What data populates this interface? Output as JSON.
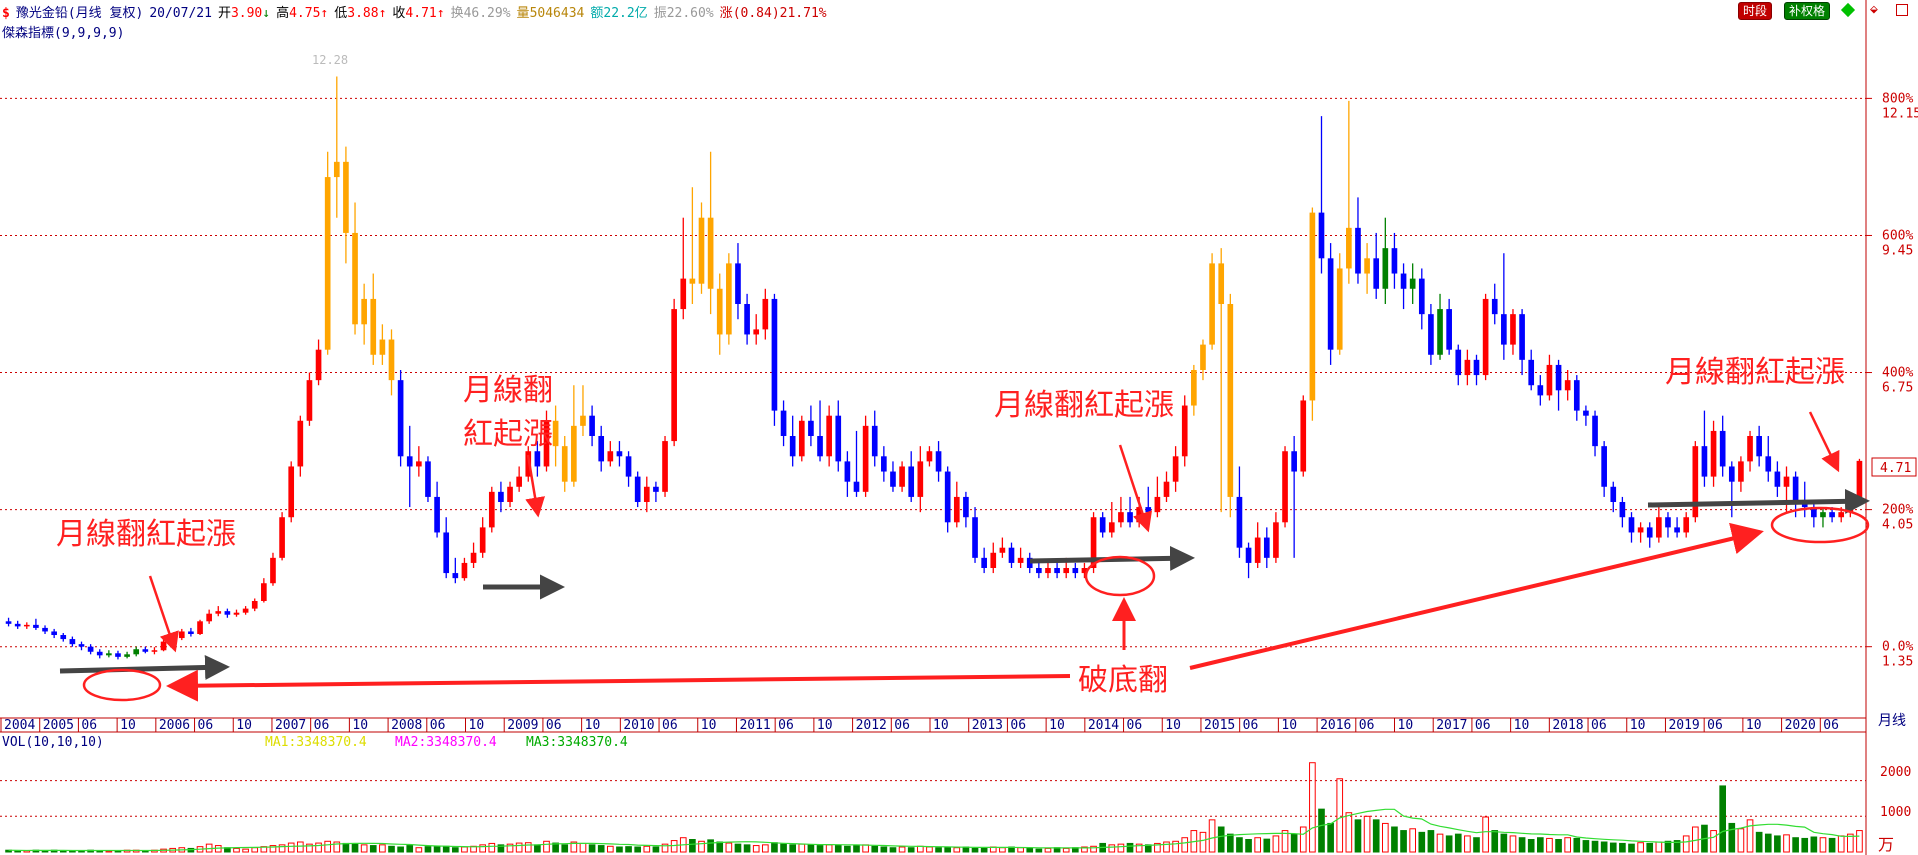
{
  "header": {
    "stock_name": "豫光金铅(月线 复权)",
    "date": "20/07/21",
    "open_label": "开",
    "open": "3.90",
    "high_label": "高",
    "high": "4.75",
    "low_label": "低",
    "low": "3.88",
    "close_label": "收",
    "close": "4.71",
    "turnover_label": "换",
    "turnover": "46.29%",
    "volume_label": "量",
    "volume": "5046434",
    "amount_label": "额",
    "amount": "22.2亿",
    "amplitude_label": "振",
    "amplitude": "22.60%",
    "change_label": "涨",
    "change": "(0.84)21.71%",
    "indicator": "傑森指標(9,9,9,9)",
    "btn_time": "时段",
    "btn_fill": "补权格"
  },
  "volume_panel": {
    "title": "VOL(10,10,10)",
    "ma1": "MA1:3348370.4",
    "ma2": "MA2:3348370.4",
    "ma3": "MA3:3348370.4",
    "axis_labels": [
      "2000",
      "1000"
    ],
    "unit": "万"
  },
  "colors": {
    "up_red": "#ff0000",
    "down_blue": "#0000ff",
    "orange": "#ffa500",
    "green": "#008000",
    "grid": "#cc0000",
    "annotation": "#ff2020",
    "arrow_grey": "#444444"
  },
  "annotations": {
    "label1": "月線翻紅起漲",
    "label2a": "月線翻",
    "label2b": "紅起漲",
    "label3": "月線翻紅起漲",
    "label4": "月線翻紅起漲",
    "label5": "破底翻",
    "top_price": "12.28"
  },
  "chart_data": {
    "type": "candlestick",
    "title": "豫光金铅(月线 复权)",
    "x_tick_labels": [
      "2004",
      "2005",
      "06",
      "10",
      "2006",
      "06",
      "10",
      "2007",
      "06",
      "10",
      "2008",
      "06",
      "10",
      "2009",
      "06",
      "10",
      "2010",
      "06",
      "10",
      "2011",
      "06",
      "10",
      "2012",
      "06",
      "10",
      "2013",
      "06",
      "10",
      "2014",
      "06",
      "10",
      "2015",
      "06",
      "10",
      "2016",
      "06",
      "10",
      "2017",
      "06",
      "10",
      "2018",
      "06",
      "10",
      "2019",
      "06",
      "10",
      "2020",
      "06"
    ],
    "x_axis_unit": "月线",
    "y_axis_percent_labels": [
      "800%",
      "600%",
      "400%",
      "200%",
      "0.0%"
    ],
    "y_axis_price_labels": [
      "12.15",
      "9.45",
      "6.75",
      "4.05",
      "1.35"
    ],
    "current_price_tag": "4.71",
    "ylim": [
      0.0,
      13.0
    ],
    "candles": [
      [
        1.55,
        1.5,
        1.62,
        1.45
      ],
      [
        1.5,
        1.45,
        1.56,
        1.4
      ],
      [
        1.45,
        1.48,
        1.53,
        1.4
      ],
      [
        1.48,
        1.42,
        1.6,
        1.38
      ],
      [
        1.42,
        1.35,
        1.47,
        1.3
      ],
      [
        1.35,
        1.28,
        1.4,
        1.22
      ],
      [
        1.28,
        1.2,
        1.32,
        1.15
      ],
      [
        1.2,
        1.1,
        1.25,
        1.05
      ],
      [
        1.1,
        1.05,
        1.15,
        0.98
      ],
      [
        1.05,
        0.95,
        1.1,
        0.9
      ],
      [
        0.95,
        0.88,
        1.0,
        0.82
      ],
      [
        0.88,
        0.92,
        0.98,
        0.84
      ],
      [
        0.92,
        0.85,
        0.97,
        0.8
      ],
      [
        0.85,
        0.9,
        0.95,
        0.82
      ],
      [
        0.9,
        1.0,
        1.05,
        0.86
      ],
      [
        1.0,
        0.95,
        1.05,
        0.92
      ],
      [
        0.95,
        0.98,
        1.04,
        0.9
      ],
      [
        0.98,
        1.15,
        1.2,
        0.96
      ],
      [
        1.15,
        1.22,
        1.3,
        1.1
      ],
      [
        1.22,
        1.35,
        1.4,
        1.18
      ],
      [
        1.35,
        1.3,
        1.42,
        1.25
      ],
      [
        1.3,
        1.55,
        1.58,
        1.28
      ],
      [
        1.55,
        1.7,
        1.78,
        1.5
      ],
      [
        1.7,
        1.75,
        1.85,
        1.65
      ],
      [
        1.75,
        1.68,
        1.8,
        1.62
      ],
      [
        1.68,
        1.72,
        1.78,
        1.64
      ],
      [
        1.72,
        1.8,
        1.85,
        1.68
      ],
      [
        1.8,
        1.95,
        2.0,
        1.75
      ],
      [
        1.95,
        2.3,
        2.4,
        1.92
      ],
      [
        2.3,
        2.8,
        2.9,
        2.25
      ],
      [
        2.8,
        3.6,
        3.7,
        2.75
      ],
      [
        3.6,
        4.6,
        4.7,
        3.5
      ],
      [
        4.6,
        5.5,
        5.6,
        4.4
      ],
      [
        5.5,
        6.3,
        6.45,
        5.4
      ],
      [
        6.3,
        6.9,
        7.1,
        6.2
      ],
      [
        6.9,
        10.3,
        10.8,
        6.8
      ],
      [
        10.3,
        10.6,
        12.28,
        9.5
      ],
      [
        10.6,
        9.2,
        10.9,
        8.6
      ],
      [
        9.2,
        7.4,
        9.8,
        7.2
      ],
      [
        7.4,
        7.9,
        8.2,
        7.0
      ],
      [
        7.9,
        6.8,
        8.4,
        6.6
      ],
      [
        6.8,
        7.1,
        7.4,
        6.6
      ],
      [
        7.1,
        6.3,
        7.3,
        6.0
      ],
      [
        6.3,
        4.8,
        6.5,
        4.6
      ],
      [
        4.8,
        4.6,
        5.4,
        3.8
      ],
      [
        4.6,
        4.7,
        5.0,
        4.4
      ],
      [
        4.7,
        4.0,
        4.8,
        3.9
      ],
      [
        4.0,
        3.3,
        4.3,
        3.2
      ],
      [
        3.3,
        2.5,
        3.6,
        2.4
      ],
      [
        2.5,
        2.4,
        2.8,
        2.3
      ],
      [
        2.4,
        2.7,
        2.8,
        2.35
      ],
      [
        2.7,
        2.9,
        3.1,
        2.6
      ],
      [
        2.9,
        3.4,
        3.6,
        2.8
      ],
      [
        3.4,
        4.1,
        4.2,
        3.3
      ],
      [
        4.1,
        3.9,
        4.3,
        3.7
      ],
      [
        3.9,
        4.2,
        4.3,
        3.8
      ],
      [
        4.2,
        4.4,
        4.6,
        4.1
      ],
      [
        4.4,
        4.9,
        5.0,
        4.3
      ],
      [
        4.9,
        4.6,
        5.1,
        4.4
      ],
      [
        4.6,
        5.5,
        5.7,
        4.5
      ],
      [
        5.5,
        5.0,
        5.8,
        4.6
      ],
      [
        5.0,
        4.3,
        5.2,
        4.1
      ],
      [
        4.3,
        5.4,
        6.2,
        4.2
      ],
      [
        5.4,
        5.6,
        6.2,
        5.2
      ],
      [
        5.6,
        5.2,
        5.8,
        5.0
      ],
      [
        5.2,
        4.7,
        5.4,
        4.5
      ],
      [
        4.7,
        4.9,
        5.1,
        4.6
      ],
      [
        4.9,
        4.8,
        5.1,
        4.6
      ],
      [
        4.8,
        4.4,
        4.9,
        4.2
      ],
      [
        4.4,
        3.9,
        4.5,
        3.8
      ],
      [
        3.9,
        4.2,
        4.4,
        3.7
      ],
      [
        4.2,
        4.1,
        4.3,
        3.9
      ],
      [
        4.1,
        5.1,
        5.2,
        4.0
      ],
      [
        5.1,
        7.7,
        7.9,
        5.0
      ],
      [
        7.7,
        8.3,
        9.5,
        7.5
      ],
      [
        8.3,
        8.2,
        10.1,
        7.8
      ],
      [
        8.2,
        9.5,
        9.8,
        8.0
      ],
      [
        9.5,
        8.1,
        10.8,
        7.6
      ],
      [
        8.1,
        7.2,
        8.4,
        6.8
      ],
      [
        7.2,
        8.6,
        8.8,
        7.0
      ],
      [
        8.6,
        7.8,
        9.0,
        7.5
      ],
      [
        7.8,
        7.2,
        8.0,
        7.0
      ],
      [
        7.2,
        7.3,
        7.6,
        7.0
      ],
      [
        7.3,
        7.9,
        8.1,
        7.1
      ],
      [
        7.9,
        5.7,
        8.0,
        5.4
      ],
      [
        5.7,
        5.2,
        5.9,
        5.0
      ],
      [
        5.2,
        4.8,
        5.6,
        4.6
      ],
      [
        4.8,
        5.5,
        5.6,
        4.7
      ],
      [
        5.5,
        5.2,
        5.8,
        5.0
      ],
      [
        5.2,
        4.8,
        5.9,
        4.7
      ],
      [
        4.8,
        5.6,
        5.8,
        4.6
      ],
      [
        5.6,
        4.7,
        5.9,
        4.5
      ],
      [
        4.7,
        4.3,
        4.9,
        4.0
      ],
      [
        4.3,
        4.1,
        5.3,
        4.0
      ],
      [
        4.1,
        5.4,
        5.6,
        4.0
      ],
      [
        5.4,
        4.8,
        5.7,
        4.6
      ],
      [
        4.8,
        4.5,
        5.0,
        4.3
      ],
      [
        4.5,
        4.2,
        4.7,
        4.1
      ],
      [
        4.2,
        4.6,
        4.7,
        4.1
      ],
      [
        4.6,
        4.0,
        4.9,
        3.9
      ],
      [
        4.0,
        4.7,
        5.0,
        3.7
      ],
      [
        4.7,
        4.9,
        5.0,
        4.6
      ],
      [
        4.9,
        4.5,
        5.1,
        4.3
      ],
      [
        4.5,
        3.5,
        4.6,
        3.3
      ],
      [
        3.5,
        4.0,
        4.3,
        3.4
      ],
      [
        4.0,
        3.6,
        4.1,
        3.4
      ],
      [
        3.6,
        2.8,
        3.8,
        2.7
      ],
      [
        2.8,
        2.6,
        3.0,
        2.5
      ],
      [
        2.6,
        2.9,
        3.1,
        2.5
      ],
      [
        2.9,
        3.0,
        3.2,
        2.8
      ],
      [
        3.0,
        2.7,
        3.1,
        2.6
      ],
      [
        2.7,
        2.8,
        3.0,
        2.6
      ],
      [
        2.8,
        2.6,
        2.9,
        2.5
      ],
      [
        2.6,
        2.5,
        2.7,
        2.4
      ],
      [
        2.5,
        2.6,
        2.7,
        2.4
      ],
      [
        2.6,
        2.5,
        2.7,
        2.4
      ],
      [
        2.5,
        2.6,
        2.8,
        2.4
      ],
      [
        2.6,
        2.5,
        2.7,
        2.4
      ],
      [
        2.5,
        2.6,
        2.7,
        2.4
      ],
      [
        2.6,
        3.6,
        3.7,
        2.5
      ],
      [
        3.6,
        3.3,
        3.7,
        3.2
      ],
      [
        3.3,
        3.5,
        3.9,
        3.2
      ],
      [
        3.5,
        3.7,
        4.0,
        3.4
      ],
      [
        3.7,
        3.5,
        4.0,
        3.4
      ],
      [
        3.5,
        3.8,
        4.0,
        3.4
      ],
      [
        3.8,
        3.7,
        4.2,
        3.5
      ],
      [
        3.7,
        4.0,
        4.4,
        3.6
      ],
      [
        4.0,
        4.3,
        4.5,
        3.9
      ],
      [
        4.3,
        4.8,
        5.0,
        4.1
      ],
      [
        4.8,
        5.8,
        6.0,
        4.6
      ],
      [
        5.8,
        6.5,
        6.6,
        5.6
      ],
      [
        6.5,
        7.0,
        7.1,
        6.3
      ],
      [
        7.0,
        8.6,
        8.8,
        6.9
      ],
      [
        8.6,
        7.8,
        8.9,
        3.7
      ],
      [
        7.8,
        4.0,
        8.0,
        3.6
      ],
      [
        4.0,
        3.0,
        4.6,
        2.8
      ],
      [
        3.0,
        2.7,
        3.1,
        2.4
      ],
      [
        2.7,
        3.2,
        3.5,
        2.6
      ],
      [
        3.2,
        2.8,
        3.4,
        2.6
      ],
      [
        2.8,
        3.5,
        3.7,
        2.7
      ],
      [
        3.5,
        4.9,
        5.0,
        3.4
      ],
      [
        4.9,
        4.5,
        5.2,
        2.8
      ],
      [
        4.5,
        5.9,
        6.0,
        4.4
      ],
      [
        5.9,
        9.6,
        9.7,
        5.5
      ],
      [
        9.6,
        8.7,
        11.5,
        8.4
      ],
      [
        8.7,
        6.9,
        9.0,
        6.6
      ],
      [
        6.9,
        8.5,
        8.8,
        6.8
      ],
      [
        8.5,
        9.3,
        11.8,
        8.2
      ],
      [
        9.3,
        8.4,
        9.9,
        8.2
      ],
      [
        8.4,
        8.7,
        9.0,
        8.0
      ],
      [
        8.7,
        8.1,
        9.2,
        7.9
      ],
      [
        8.1,
        8.9,
        9.5,
        7.8
      ],
      [
        8.9,
        8.4,
        9.2,
        8.1
      ],
      [
        8.4,
        8.1,
        8.6,
        7.7
      ],
      [
        8.1,
        8.3,
        8.6,
        7.8
      ],
      [
        8.3,
        7.6,
        8.5,
        7.3
      ],
      [
        7.6,
        6.8,
        7.8,
        6.6
      ],
      [
        6.8,
        7.7,
        8.0,
        6.7
      ],
      [
        7.7,
        6.9,
        7.9,
        6.8
      ],
      [
        6.9,
        6.4,
        7.0,
        6.2
      ],
      [
        6.4,
        6.7,
        6.9,
        6.2
      ],
      [
        6.7,
        6.4,
        6.8,
        6.2
      ],
      [
        6.4,
        7.9,
        8.0,
        6.3
      ],
      [
        7.9,
        7.6,
        8.2,
        7.4
      ],
      [
        7.6,
        7.0,
        8.8,
        6.7
      ],
      [
        7.0,
        7.6,
        7.7,
        6.8
      ],
      [
        7.6,
        6.7,
        7.7,
        6.4
      ],
      [
        6.7,
        6.2,
        6.9,
        6.1
      ],
      [
        6.2,
        6.0,
        6.4,
        5.8
      ],
      [
        6.0,
        6.6,
        6.8,
        5.9
      ],
      [
        6.6,
        6.1,
        6.7,
        5.7
      ],
      [
        6.1,
        6.3,
        6.5,
        5.9
      ],
      [
        6.3,
        5.7,
        6.4,
        5.5
      ],
      [
        5.7,
        5.6,
        5.8,
        5.4
      ],
      [
        5.6,
        5.0,
        5.7,
        4.8
      ],
      [
        5.0,
        4.2,
        5.1,
        4.0
      ],
      [
        4.2,
        3.9,
        4.3,
        3.7
      ],
      [
        3.9,
        3.6,
        4.0,
        3.4
      ],
      [
        3.6,
        3.3,
        3.7,
        3.1
      ],
      [
        3.3,
        3.4,
        3.5,
        3.1
      ],
      [
        3.4,
        3.2,
        3.5,
        3.0
      ],
      [
        3.2,
        3.6,
        3.8,
        3.1
      ],
      [
        3.6,
        3.4,
        3.7,
        3.2
      ],
      [
        3.4,
        3.3,
        3.6,
        3.2
      ],
      [
        3.3,
        3.6,
        3.7,
        3.2
      ],
      [
        3.6,
        5.0,
        5.1,
        3.5
      ],
      [
        5.0,
        4.4,
        5.7,
        4.2
      ],
      [
        4.4,
        5.3,
        5.5,
        4.2
      ],
      [
        5.3,
        4.6,
        5.6,
        4.4
      ],
      [
        4.6,
        4.3,
        4.7,
        3.6
      ],
      [
        4.3,
        4.7,
        4.8,
        4.1
      ],
      [
        4.7,
        5.2,
        5.3,
        4.5
      ],
      [
        5.2,
        4.8,
        5.4,
        4.6
      ],
      [
        4.8,
        4.5,
        5.2,
        4.3
      ],
      [
        4.5,
        4.2,
        4.7,
        4.0
      ],
      [
        4.2,
        4.4,
        4.6,
        3.7
      ],
      [
        4.4,
        3.9,
        4.5,
        3.6
      ],
      [
        3.9,
        3.8,
        4.3,
        3.6
      ],
      [
        3.8,
        3.6,
        3.9,
        3.4
      ],
      [
        3.6,
        3.7,
        3.8,
        3.4
      ],
      [
        3.7,
        3.6,
        3.8,
        3.5
      ],
      [
        3.6,
        3.7,
        3.8,
        3.5
      ],
      [
        3.7,
        3.9,
        4.0,
        3.6
      ],
      [
        3.9,
        4.71,
        4.75,
        3.88
      ]
    ],
    "volumes": [
      0.05,
      0.04,
      0.04,
      0.05,
      0.04,
      0.05,
      0.04,
      0.03,
      0.04,
      0.05,
      0.04,
      0.03,
      0.04,
      0.05,
      0.05,
      0.04,
      0.05,
      0.08,
      0.1,
      0.12,
      0.1,
      0.15,
      0.22,
      0.18,
      0.12,
      0.1,
      0.08,
      0.12,
      0.15,
      0.18,
      0.2,
      0.25,
      0.28,
      0.22,
      0.25,
      0.3,
      0.28,
      0.24,
      0.22,
      0.2,
      0.18,
      0.2,
      0.16,
      0.14,
      0.18,
      0.12,
      0.15,
      0.14,
      0.16,
      0.12,
      0.14,
      0.16,
      0.2,
      0.24,
      0.2,
      0.22,
      0.25,
      0.26,
      0.2,
      0.3,
      0.25,
      0.2,
      0.28,
      0.24,
      0.2,
      0.18,
      0.16,
      0.14,
      0.15,
      0.14,
      0.16,
      0.14,
      0.22,
      0.32,
      0.4,
      0.35,
      0.3,
      0.34,
      0.28,
      0.25,
      0.22,
      0.2,
      0.18,
      0.2,
      0.26,
      0.22,
      0.2,
      0.22,
      0.2,
      0.18,
      0.2,
      0.18,
      0.16,
      0.18,
      0.2,
      0.16,
      0.14,
      0.12,
      0.14,
      0.12,
      0.16,
      0.14,
      0.12,
      0.14,
      0.12,
      0.14,
      0.1,
      0.12,
      0.14,
      0.12,
      0.14,
      0.12,
      0.1,
      0.08,
      0.1,
      0.12,
      0.1,
      0.12,
      0.14,
      0.16,
      0.24,
      0.2,
      0.22,
      0.24,
      0.22,
      0.2,
      0.24,
      0.28,
      0.3,
      0.4,
      0.6,
      0.55,
      0.9,
      0.7,
      0.5,
      0.4,
      0.35,
      0.4,
      0.36,
      0.45,
      0.6,
      0.5,
      0.7,
      2.5,
      1.2,
      0.8,
      2.05,
      1.1,
      0.9,
      1.0,
      0.9,
      0.8,
      0.7,
      0.6,
      0.65,
      0.55,
      0.6,
      0.5,
      0.45,
      0.5,
      0.45,
      0.4,
      0.98,
      0.6,
      0.5,
      0.45,
      0.4,
      0.35,
      0.4,
      0.38,
      0.35,
      0.4,
      0.38,
      0.32,
      0.3,
      0.28,
      0.25,
      0.24,
      0.22,
      0.26,
      0.24,
      0.28,
      0.3,
      0.32,
      0.45,
      0.7,
      0.75,
      0.6,
      1.85,
      0.8,
      0.65,
      0.9,
      0.55,
      0.5,
      0.45,
      0.48,
      0.4,
      0.38,
      0.42,
      0.4,
      0.38,
      0.45,
      0.5,
      0.6
    ],
    "volume_ylim": [
      0,
      2800
    ]
  }
}
